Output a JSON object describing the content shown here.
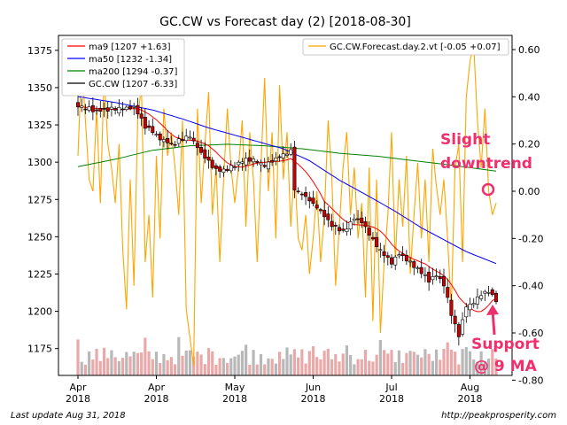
{
  "chart_data": {
    "type": "candlestick",
    "title": "GC.CW vs Forecast day (2)  [2018-08-30]",
    "left_axis": {
      "range": [
        1157,
        1385
      ],
      "ticks": [
        1175,
        1200,
        1225,
        1250,
        1275,
        1300,
        1325,
        1350,
        1375
      ]
    },
    "right_axis": {
      "range": [
        -0.78,
        0.66
      ],
      "ticks": [
        "0.60",
        "0.40",
        "0.20",
        "0.00",
        "-0.20",
        "-0.40",
        "-0.60",
        "-0.80"
      ]
    },
    "x_ticks": [
      {
        "line1": "Apr",
        "line2": "2018",
        "idx": 0
      },
      {
        "line1": "Apr",
        "line2": "2018",
        "idx": 21
      },
      {
        "line1": "May",
        "line2": "2018",
        "idx": 42
      },
      {
        "line1": "Jun",
        "line2": "2018",
        "idx": 63
      },
      {
        "line1": "Jul",
        "line2": "2018",
        "idx": 84
      },
      {
        "line1": "Aug",
        "line2": "2018",
        "idx": 105
      }
    ],
    "n_bars": 113,
    "legend_left": [
      {
        "label": "ma9 [1207 +1.63]",
        "color": "#ff0000"
      },
      {
        "label": "ma50 [1232 -1.34]",
        "color": "#0000ff"
      },
      {
        "label": "ma200 [1294 -0.37]",
        "color": "#008000"
      },
      {
        "label": "GC.CW [1207 -6.33]",
        "color": "#000000"
      }
    ],
    "legend_right": {
      "label": "GC.CW.Forecast.day.2.vt [-0.05 +0.07]",
      "color": "#ffa500"
    },
    "close_keypoints": [
      [
        0,
        1338
      ],
      [
        5,
        1334
      ],
      [
        10,
        1336
      ],
      [
        15,
        1337
      ],
      [
        18,
        1324
      ],
      [
        22,
        1316
      ],
      [
        25,
        1312
      ],
      [
        30,
        1318
      ],
      [
        33,
        1306
      ],
      [
        37,
        1295
      ],
      [
        40,
        1295
      ],
      [
        44,
        1301
      ],
      [
        47,
        1302
      ],
      [
        50,
        1298
      ],
      [
        54,
        1304
      ],
      [
        57,
        1307
      ],
      [
        58,
        1282
      ],
      [
        62,
        1275
      ],
      [
        65,
        1267
      ],
      [
        68,
        1258
      ],
      [
        71,
        1253
      ],
      [
        74,
        1262
      ],
      [
        76,
        1260
      ],
      [
        79,
        1248
      ],
      [
        81,
        1240
      ],
      [
        84,
        1233
      ],
      [
        86,
        1238
      ],
      [
        89,
        1233
      ],
      [
        91,
        1228
      ],
      [
        94,
        1221
      ],
      [
        96,
        1224
      ],
      [
        98,
        1218
      ],
      [
        100,
        1198
      ],
      [
        102,
        1183
      ],
      [
        104,
        1203
      ],
      [
        106,
        1206
      ],
      [
        108,
        1211
      ],
      [
        110,
        1213
      ],
      [
        112,
        1207
      ]
    ],
    "ma50_keypoints": [
      [
        0,
        1344
      ],
      [
        10,
        1340
      ],
      [
        20,
        1335
      ],
      [
        28,
        1329
      ],
      [
        35,
        1323
      ],
      [
        45,
        1316
      ],
      [
        55,
        1309
      ],
      [
        62,
        1301
      ],
      [
        70,
        1288
      ],
      [
        78,
        1277
      ],
      [
        85,
        1267
      ],
      [
        92,
        1256
      ],
      [
        98,
        1248
      ],
      [
        104,
        1240
      ],
      [
        108,
        1236
      ],
      [
        112,
        1232
      ]
    ],
    "ma200_keypoints": [
      [
        0,
        1297
      ],
      [
        10,
        1302
      ],
      [
        20,
        1308
      ],
      [
        30,
        1311
      ],
      [
        40,
        1312
      ],
      [
        50,
        1311
      ],
      [
        60,
        1309
      ],
      [
        70,
        1306
      ],
      [
        80,
        1304
      ],
      [
        90,
        1301
      ],
      [
        100,
        1298
      ],
      [
        112,
        1294
      ]
    ],
    "forecast_keypoints": [
      [
        0,
        0.15
      ],
      [
        1,
        0.55
      ],
      [
        2,
        0.3
      ],
      [
        3,
        0.05
      ],
      [
        4,
        0.0
      ],
      [
        5,
        0.35
      ],
      [
        6,
        -0.05
      ],
      [
        7,
        0.5
      ],
      [
        8,
        0.2
      ],
      [
        9,
        0.1
      ],
      [
        10,
        -0.05
      ],
      [
        11,
        0.2
      ],
      [
        12,
        -0.25
      ],
      [
        13,
        -0.5
      ],
      [
        14,
        0.05
      ],
      [
        15,
        -0.4
      ],
      [
        16,
        0.3
      ],
      [
        17,
        0.45
      ],
      [
        18,
        -0.3
      ],
      [
        19,
        -0.1
      ],
      [
        20,
        -0.45
      ],
      [
        21,
        0.15
      ],
      [
        22,
        -0.2
      ],
      [
        23,
        0.35
      ],
      [
        24,
        0.15
      ],
      [
        25,
        0.25
      ],
      [
        26,
        0.1
      ],
      [
        27,
        -0.1
      ],
      [
        28,
        0.3
      ],
      [
        29,
        -0.5
      ],
      [
        30,
        -0.62
      ],
      [
        31,
        -0.74
      ],
      [
        32,
        0.35
      ],
      [
        33,
        -0.05
      ],
      [
        34,
        0.2
      ],
      [
        35,
        0.42
      ],
      [
        36,
        -0.1
      ],
      [
        37,
        0.1
      ],
      [
        38,
        -0.3
      ],
      [
        39,
        0.05
      ],
      [
        40,
        0.35
      ],
      [
        41,
        0.1
      ],
      [
        42,
        -0.05
      ],
      [
        43,
        0.1
      ],
      [
        44,
        0.3
      ],
      [
        45,
        -0.15
      ],
      [
        46,
        0.25
      ],
      [
        47,
        0.05
      ],
      [
        48,
        -0.3
      ],
      [
        49,
        0.1
      ],
      [
        50,
        0.48
      ],
      [
        51,
        0.0
      ],
      [
        52,
        0.25
      ],
      [
        53,
        -0.2
      ],
      [
        54,
        0.45
      ],
      [
        55,
        0.05
      ],
      [
        56,
        0.25
      ],
      [
        57,
        -0.15
      ],
      [
        58,
        0.1
      ],
      [
        59,
        -0.2
      ],
      [
        60,
        -0.25
      ],
      [
        61,
        -0.1
      ],
      [
        62,
        -0.35
      ],
      [
        63,
        -0.2
      ],
      [
        64,
        0.0
      ],
      [
        65,
        -0.3
      ],
      [
        66,
        -0.1
      ],
      [
        67,
        0.3
      ],
      [
        68,
        0.05
      ],
      [
        69,
        -0.4
      ],
      [
        70,
        -0.15
      ],
      [
        71,
        0.1
      ],
      [
        72,
        0.25
      ],
      [
        73,
        -0.1
      ],
      [
        74,
        0.1
      ],
      [
        75,
        -0.2
      ],
      [
        76,
        -0.05
      ],
      [
        77,
        -0.45
      ],
      [
        78,
        0.1
      ],
      [
        79,
        -0.55
      ],
      [
        80,
        0.05
      ],
      [
        81,
        -0.6
      ],
      [
        82,
        -0.3
      ],
      [
        83,
        -0.1
      ],
      [
        84,
        0.25
      ],
      [
        85,
        -0.3
      ],
      [
        86,
        0.05
      ],
      [
        87,
        -0.15
      ],
      [
        88,
        0.15
      ],
      [
        89,
        -0.35
      ],
      [
        90,
        -0.1
      ],
      [
        91,
        0.12
      ],
      [
        92,
        -0.2
      ],
      [
        93,
        0.05
      ],
      [
        94,
        -0.3
      ],
      [
        95,
        0.18
      ],
      [
        96,
        0.02
      ],
      [
        97,
        -0.1
      ],
      [
        98,
        0.05
      ],
      [
        99,
        -0.2
      ],
      [
        100,
        -0.5
      ],
      [
        101,
        0.1
      ],
      [
        102,
        0.2
      ],
      [
        103,
        -0.3
      ],
      [
        104,
        0.4
      ],
      [
        105,
        0.55
      ],
      [
        106,
        0.62
      ],
      [
        107,
        0.3
      ],
      [
        108,
        0.1
      ],
      [
        109,
        0.35
      ],
      [
        110,
        0.0
      ],
      [
        111,
        -0.1
      ],
      [
        112,
        -0.05
      ]
    ],
    "annotations": [
      {
        "text": "Slight",
        "color": "#f0306e"
      },
      {
        "text": "downtrend",
        "color": "#f0306e"
      },
      {
        "text": "Support",
        "color": "#f0306e"
      },
      {
        "text": "@ 9 MA",
        "color": "#f0306e"
      }
    ],
    "grid": false,
    "legend_placement": "top-left"
  },
  "footer": {
    "last_update": "Last update Aug 31, 2018",
    "url": "http://peakprosperity.com"
  }
}
